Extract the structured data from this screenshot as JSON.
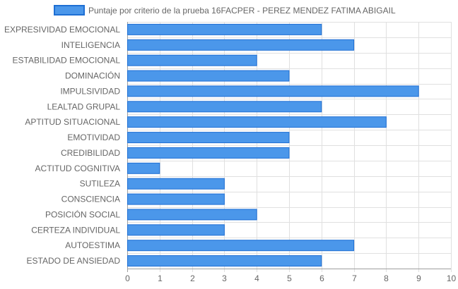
{
  "chart_data": {
    "type": "bar",
    "orientation": "horizontal",
    "categories": [
      "EXPRESIVIDAD EMOCIONAL",
      "INTELIGENCIA",
      "ESTABILIDAD EMOCIONAL",
      "DOMINACIÓN",
      "IMPULSIVIDAD",
      "LEALTAD GRUPAL",
      "APTITUD SITUACIONAL",
      "EMOTIVIDAD",
      "CREDIBILIDAD",
      "ACTITUD COGNITIVA",
      "SUTILEZA",
      "CONSCIENCIA",
      "POSICIÓN SOCIAL",
      "CERTEZA INDIVIDUAL",
      "AUTOESTIMA",
      "ESTADO DE ANSIEDAD"
    ],
    "series": [
      {
        "name": "Puntaje por criterio de la prueba 16FACPER - PEREZ MENDEZ FATIMA ABIGAIL",
        "values": [
          6,
          7,
          4,
          5,
          9,
          6,
          8,
          5,
          5,
          1,
          3,
          3,
          4,
          3,
          7,
          6
        ],
        "color": "#4b97ea",
        "border_color": "#1e6fd4"
      }
    ],
    "xlim": [
      0,
      10
    ],
    "x_ticks": [
      "0",
      "1",
      "2",
      "3",
      "4",
      "5",
      "6",
      "7",
      "8",
      "9",
      "10"
    ],
    "xlabel": "",
    "ylabel": "",
    "grid": true,
    "legend_position": "top"
  },
  "colors": {
    "grid": "#e0e0e0",
    "axis": "#9e9e9e",
    "text": "#666666"
  }
}
